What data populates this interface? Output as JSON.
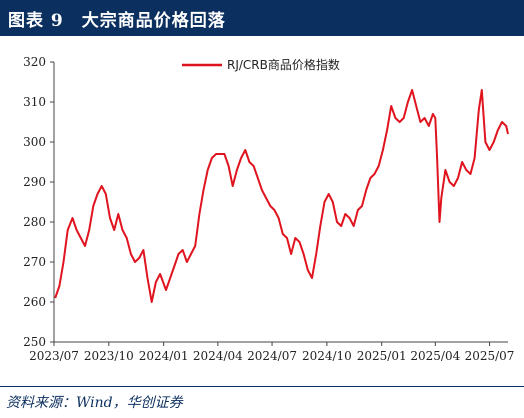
{
  "header": {
    "title": "图表 9　大宗商品价格回落",
    "background": "#0b2f5f"
  },
  "source": {
    "text": "资料来源：Wind，华创证券"
  },
  "chart_data": {
    "type": "line",
    "title": "",
    "xlabel": "",
    "ylabel": "",
    "ylim": [
      250,
      320
    ],
    "yticks": [
      250,
      260,
      270,
      280,
      290,
      300,
      310,
      320
    ],
    "xlim": [
      "2023-07-01",
      "2025-08-01"
    ],
    "xticks": [
      "2023/07",
      "2023/10",
      "2024/01",
      "2024/04",
      "2024/07",
      "2024/10",
      "2025/01",
      "2025/04",
      "2025/07"
    ],
    "xtick_dates": [
      "2023-07-01",
      "2023-10-01",
      "2024-01-01",
      "2024-04-01",
      "2024-07-01",
      "2024-10-01",
      "2025-01-01",
      "2025-04-01",
      "2025-07-01"
    ],
    "grid": false,
    "legend": "top-center",
    "series": [
      {
        "name": "RJ/CRB商品价格指数",
        "color": "#e0141e",
        "points": [
          [
            "2023-07-03",
            261
          ],
          [
            "2023-07-10",
            264
          ],
          [
            "2023-07-17",
            270
          ],
          [
            "2023-07-24",
            278
          ],
          [
            "2023-08-01",
            281
          ],
          [
            "2023-08-08",
            278
          ],
          [
            "2023-08-15",
            276
          ],
          [
            "2023-08-22",
            274
          ],
          [
            "2023-08-29",
            278
          ],
          [
            "2023-09-05",
            284
          ],
          [
            "2023-09-12",
            287
          ],
          [
            "2023-09-19",
            289
          ],
          [
            "2023-09-26",
            287
          ],
          [
            "2023-10-03",
            281
          ],
          [
            "2023-10-10",
            278
          ],
          [
            "2023-10-17",
            282
          ],
          [
            "2023-10-24",
            278
          ],
          [
            "2023-10-31",
            276
          ],
          [
            "2023-11-07",
            272
          ],
          [
            "2023-11-14",
            270
          ],
          [
            "2023-11-21",
            271
          ],
          [
            "2023-11-28",
            273
          ],
          [
            "2023-12-05",
            266
          ],
          [
            "2023-12-12",
            260
          ],
          [
            "2023-12-19",
            265
          ],
          [
            "2023-12-26",
            267
          ],
          [
            "2024-01-05",
            263
          ],
          [
            "2024-01-12",
            266
          ],
          [
            "2024-01-19",
            269
          ],
          [
            "2024-01-26",
            272
          ],
          [
            "2024-02-02",
            273
          ],
          [
            "2024-02-09",
            270
          ],
          [
            "2024-02-16",
            272
          ],
          [
            "2024-02-23",
            274
          ],
          [
            "2024-03-01",
            282
          ],
          [
            "2024-03-08",
            288
          ],
          [
            "2024-03-15",
            293
          ],
          [
            "2024-03-22",
            296
          ],
          [
            "2024-03-29",
            297
          ],
          [
            "2024-04-05",
            297
          ],
          [
            "2024-04-12",
            297
          ],
          [
            "2024-04-19",
            294
          ],
          [
            "2024-04-26",
            289
          ],
          [
            "2024-05-03",
            293
          ],
          [
            "2024-05-10",
            296
          ],
          [
            "2024-05-17",
            298
          ],
          [
            "2024-05-24",
            295
          ],
          [
            "2024-05-31",
            294
          ],
          [
            "2024-06-07",
            291
          ],
          [
            "2024-06-14",
            288
          ],
          [
            "2024-06-21",
            286
          ],
          [
            "2024-06-28",
            284
          ],
          [
            "2024-07-05",
            283
          ],
          [
            "2024-07-12",
            281
          ],
          [
            "2024-07-19",
            277
          ],
          [
            "2024-07-26",
            276
          ],
          [
            "2024-08-02",
            272
          ],
          [
            "2024-08-09",
            276
          ],
          [
            "2024-08-16",
            275
          ],
          [
            "2024-08-23",
            272
          ],
          [
            "2024-08-30",
            268
          ],
          [
            "2024-09-06",
            266
          ],
          [
            "2024-09-13",
            272
          ],
          [
            "2024-09-20",
            279
          ],
          [
            "2024-09-27",
            285
          ],
          [
            "2024-10-04",
            287
          ],
          [
            "2024-10-11",
            285
          ],
          [
            "2024-10-18",
            280
          ],
          [
            "2024-10-25",
            279
          ],
          [
            "2024-11-01",
            282
          ],
          [
            "2024-11-08",
            281
          ],
          [
            "2024-11-15",
            279
          ],
          [
            "2024-11-22",
            283
          ],
          [
            "2024-11-29",
            284
          ],
          [
            "2024-12-06",
            288
          ],
          [
            "2024-12-13",
            291
          ],
          [
            "2024-12-20",
            292
          ],
          [
            "2024-12-27",
            294
          ],
          [
            "2025-01-03",
            298
          ],
          [
            "2025-01-10",
            303
          ],
          [
            "2025-01-17",
            309
          ],
          [
            "2025-01-24",
            306
          ],
          [
            "2025-01-31",
            305
          ],
          [
            "2025-02-07",
            306
          ],
          [
            "2025-02-14",
            310
          ],
          [
            "2025-02-21",
            313
          ],
          [
            "2025-02-28",
            309
          ],
          [
            "2025-03-07",
            305
          ],
          [
            "2025-03-14",
            306
          ],
          [
            "2025-03-21",
            304
          ],
          [
            "2025-03-28",
            307
          ],
          [
            "2025-04-01",
            306
          ],
          [
            "2025-04-04",
            296
          ],
          [
            "2025-04-08",
            280
          ],
          [
            "2025-04-11",
            286
          ],
          [
            "2025-04-18",
            293
          ],
          [
            "2025-04-25",
            290
          ],
          [
            "2025-05-02",
            289
          ],
          [
            "2025-05-09",
            291
          ],
          [
            "2025-05-16",
            295
          ],
          [
            "2025-05-23",
            293
          ],
          [
            "2025-05-30",
            292
          ],
          [
            "2025-06-06",
            296
          ],
          [
            "2025-06-13",
            308
          ],
          [
            "2025-06-18",
            313
          ],
          [
            "2025-06-24",
            300
          ],
          [
            "2025-07-01",
            298
          ],
          [
            "2025-07-08",
            300
          ],
          [
            "2025-07-15",
            303
          ],
          [
            "2025-07-22",
            305
          ],
          [
            "2025-07-29",
            304
          ],
          [
            "2025-08-01",
            302
          ]
        ]
      }
    ]
  }
}
